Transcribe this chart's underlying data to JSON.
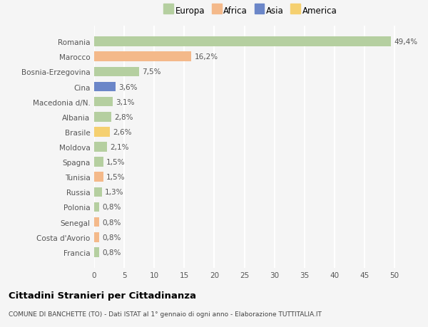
{
  "countries": [
    "Romania",
    "Marocco",
    "Bosnia-Erzegovina",
    "Cina",
    "Macedonia d/N.",
    "Albania",
    "Brasile",
    "Moldova",
    "Spagna",
    "Tunisia",
    "Russia",
    "Polonia",
    "Senegal",
    "Costa d'Avorio",
    "Francia"
  ],
  "values": [
    49.4,
    16.2,
    7.5,
    3.6,
    3.1,
    2.8,
    2.6,
    2.1,
    1.5,
    1.5,
    1.3,
    0.8,
    0.8,
    0.8,
    0.8
  ],
  "labels": [
    "49,4%",
    "16,2%",
    "7,5%",
    "3,6%",
    "3,1%",
    "2,8%",
    "2,6%",
    "2,1%",
    "1,5%",
    "1,5%",
    "1,3%",
    "0,8%",
    "0,8%",
    "0,8%",
    "0,8%"
  ],
  "colors": [
    "#b5cfa0",
    "#f4b98a",
    "#b5cfa0",
    "#6b86c8",
    "#b5cfa0",
    "#b5cfa0",
    "#f5d070",
    "#b5cfa0",
    "#b5cfa0",
    "#f4b98a",
    "#b5cfa0",
    "#b5cfa0",
    "#f4b98a",
    "#f4b98a",
    "#b5cfa0"
  ],
  "legend_labels": [
    "Europa",
    "Africa",
    "Asia",
    "America"
  ],
  "legend_colors": [
    "#b5cfa0",
    "#f4b98a",
    "#6b86c8",
    "#f5d070"
  ],
  "title": "Cittadini Stranieri per Cittadinanza",
  "subtitle": "COMUNE DI BANCHETTE (TO) - Dati ISTAT al 1° gennaio di ogni anno - Elaborazione TUTTITALIA.IT",
  "xlim": [
    0,
    52
  ],
  "xticks": [
    0,
    5,
    10,
    15,
    20,
    25,
    30,
    35,
    40,
    45,
    50
  ],
  "background_color": "#f5f5f5",
  "grid_color": "#ffffff",
  "label_fontsize": 7.5,
  "tick_fontsize": 7.5,
  "ytick_fontsize": 7.5
}
